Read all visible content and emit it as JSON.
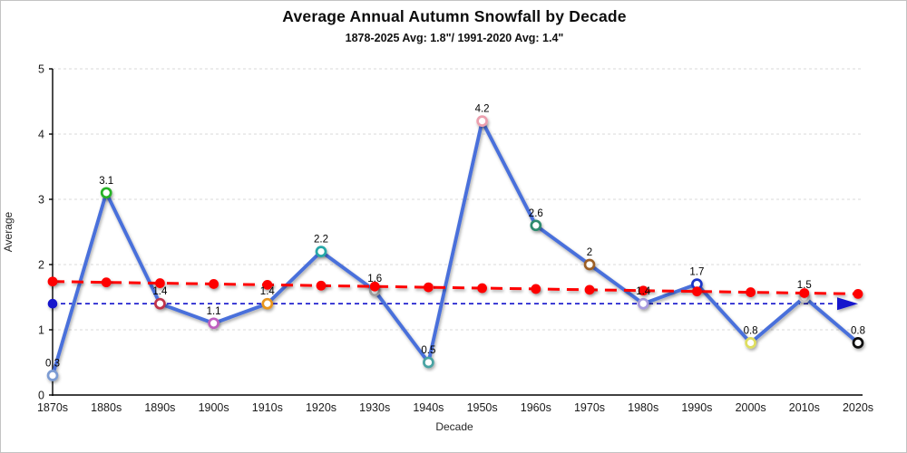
{
  "title": "Average Annual Autumn Snowfall by Decade",
  "subtitle": "1878-2025 Avg: 1.8\"/ 1991-2020 Avg: 1.4\"",
  "chart_data": {
    "type": "line",
    "categories": [
      "1870s",
      "1880s",
      "1890s",
      "1900s",
      "1910s",
      "1920s",
      "1930s",
      "1940s",
      "1950s",
      "1960s",
      "1970s",
      "1980s",
      "1990s",
      "2000s",
      "2010s",
      "2020s"
    ],
    "series": [
      {
        "name": "average-autumn-snowfall",
        "values": [
          0.3,
          3.1,
          1.4,
          1.1,
          1.4,
          2.2,
          1.6,
          0.5,
          4.2,
          2.6,
          2,
          1.4,
          1.7,
          0.8,
          1.5,
          0.8
        ],
        "line_color": "#4a6fdb",
        "marker_fill": "#ffffff",
        "marker_colors": [
          "#7b9bd2",
          "#26b226",
          "#c0304a",
          "#bf5fbf",
          "#e8941e",
          "#27a7a7",
          "#a3a3a3",
          "#4aa3a3",
          "#eb9fae",
          "#2e8b6e",
          "#9c5f28",
          "#a89ade",
          "#1f36c8",
          "#dede5e",
          "#c8c8c8",
          "#111111"
        ]
      }
    ],
    "trend_line": {
      "name": "linear-trend",
      "color": "#fe0000",
      "style": "dashed",
      "start_value": 1.74,
      "end_value": 1.55,
      "point_markers": true
    },
    "reference_line": {
      "name": "1991-2020-average",
      "value": 1.4,
      "color": "#1414cc",
      "style": "dashed",
      "start_dot": true,
      "end_arrow": true
    },
    "xlabel": "Decade",
    "ylabel": "Average",
    "ylim": [
      0,
      5
    ],
    "ytick_step": 1,
    "yticks": [
      "0",
      "1",
      "2",
      "3",
      "4",
      "5"
    ],
    "grid": "horizontal-dashed",
    "grid_color": "#d9d9d9",
    "axis_color": "#000000",
    "label_color": "#000000",
    "legend": "none"
  }
}
